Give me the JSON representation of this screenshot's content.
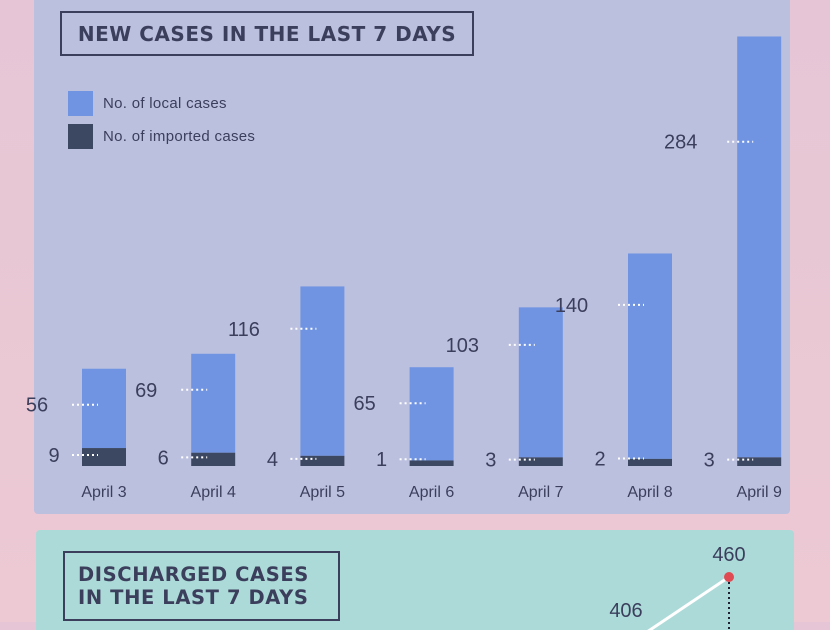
{
  "new_cases": {
    "title": "NEW CASES IN THE LAST 7 DAYS",
    "legend": [
      {
        "label": "No. of local cases",
        "color": "#7094e2"
      },
      {
        "label": "No. of imported cases",
        "color": "#3c4862"
      }
    ]
  },
  "discharged": {
    "title_lines": [
      "DISCHARGED CASES",
      "IN THE LAST 7 DAYS"
    ],
    "visible_labels": [
      {
        "label": "406",
        "value": 406
      },
      {
        "label": "460",
        "value": 460
      }
    ],
    "marker_color": "#e04a52"
  },
  "chart_data": [
    {
      "type": "bar",
      "stacked": true,
      "title": "NEW CASES IN THE LAST 7 DAYS",
      "categories": [
        "April 3",
        "April 4",
        "April 5",
        "April 6",
        "April 7",
        "April 8",
        "April 9"
      ],
      "series": [
        {
          "name": "No. of local cases",
          "values": [
            56,
            69,
            116,
            65,
            103,
            140,
            284
          ]
        },
        {
          "name": "No. of imported cases",
          "values": [
            9,
            6,
            4,
            1,
            3,
            2,
            3
          ]
        }
      ],
      "grid": false,
      "legend_position": "top-left"
    },
    {
      "type": "line",
      "title": "DISCHARGED CASES IN THE LAST 7 DAYS",
      "visible_values": [
        406,
        460
      ],
      "partially_visible": true
    }
  ]
}
